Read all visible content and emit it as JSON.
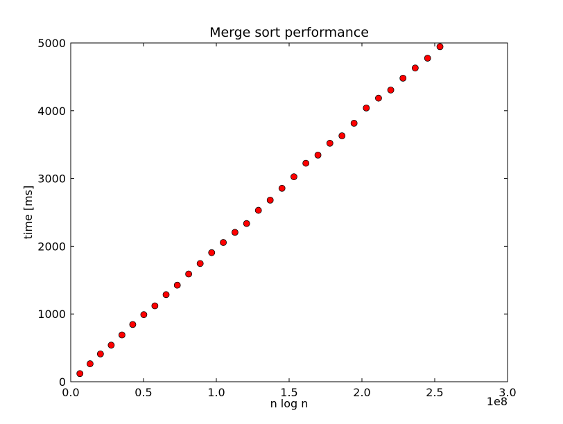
{
  "chart_data": {
    "type": "scatter",
    "title": "Merge sort performance",
    "xlabel": "n log n",
    "ylabel": "time [ms]",
    "x_offset_label": "1e8",
    "xlim": [
      0,
      300000000
    ],
    "ylim": [
      0,
      5000
    ],
    "x_ticks": [
      0,
      50000000,
      100000000,
      150000000,
      200000000,
      250000000,
      300000000
    ],
    "x_tick_labels": [
      "0.0",
      "0.5",
      "1.0",
      "1.5",
      "2.0",
      "2.5",
      "3.0"
    ],
    "y_ticks": [
      0,
      1000,
      2000,
      3000,
      4000,
      5000
    ],
    "y_tick_labels": [
      "0",
      "1000",
      "2000",
      "3000",
      "4000",
      "5000"
    ],
    "grid": false,
    "marker": "circle",
    "colors": {
      "marker_fill": "#ff0000",
      "marker_edge": "#000000",
      "axes": "#000000",
      "background": "#ffffff"
    },
    "series": [
      {
        "x": [
          6300000,
          13300000,
          20400000,
          27800000,
          35200000,
          42600000,
          50200000,
          57800000,
          65500000,
          73200000,
          81000000,
          88900000,
          96800000,
          104800000,
          112800000,
          120800000,
          128900000,
          137000000,
          145100000,
          153300000,
          161500000,
          169800000,
          178000000,
          186300000,
          194600000,
          203000000,
          211400000,
          219800000,
          228200000,
          236600000,
          245100000,
          253600000
        ],
        "y": [
          120,
          265,
          410,
          540,
          690,
          845,
          990,
          1120,
          1285,
          1425,
          1590,
          1745,
          1905,
          2055,
          2205,
          2335,
          2530,
          2680,
          2855,
          3025,
          3225,
          3345,
          3520,
          3630,
          3815,
          4040,
          4185,
          4305,
          4480,
          4630,
          4775,
          4945
        ]
      }
    ]
  }
}
